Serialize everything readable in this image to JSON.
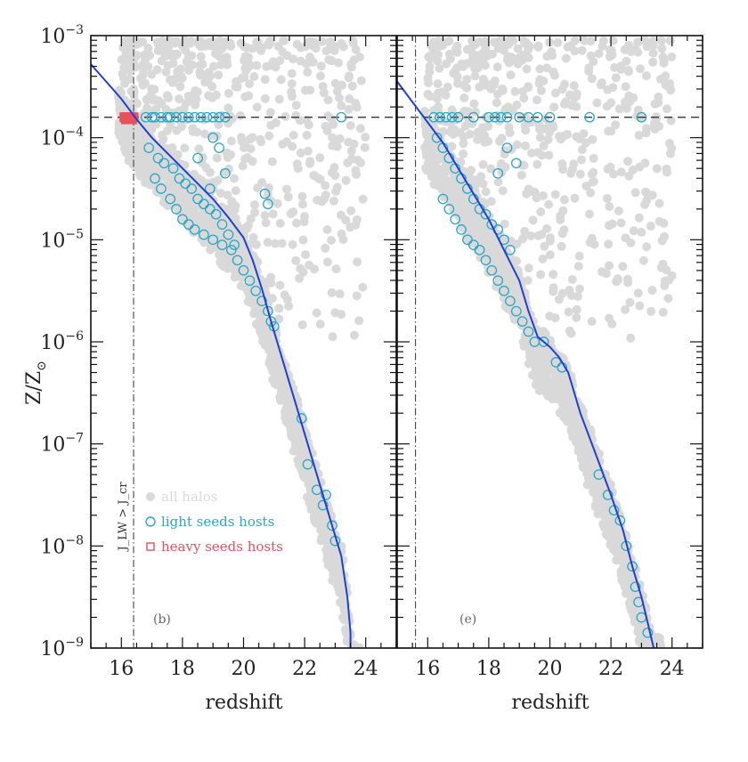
{
  "colors": {
    "halos": "#d9d9d9",
    "light_seeds": "#2aa6c6",
    "heavy_seeds": "#e8505b",
    "median_line": "#1f3fd6",
    "axes": "#111111"
  },
  "y_axis": {
    "label": "Z/Z",
    "label_subscript": "⊙",
    "ticks": [
      {
        "base": "10",
        "exp": "−3",
        "value": -3
      },
      {
        "base": "10",
        "exp": "−4",
        "value": -4
      },
      {
        "base": "10",
        "exp": "−5",
        "value": -5
      },
      {
        "base": "10",
        "exp": "−6",
        "value": -6
      },
      {
        "base": "10",
        "exp": "−7",
        "value": -7
      },
      {
        "base": "10",
        "exp": "−8",
        "value": -8
      },
      {
        "base": "10",
        "exp": "−9",
        "value": -9
      }
    ]
  },
  "legend": {
    "all_halos": "all halos",
    "light_seeds": "light seeds hosts",
    "heavy_seeds": "heavy seeds hosts"
  },
  "jlw_label": "J_LW > J_cr",
  "chart_data": [
    {
      "type": "scatter",
      "panel": "(b)",
      "xlabel": "redshift",
      "ylabel": "Z/Z⊙",
      "xlim": [
        15,
        25
      ],
      "ylim_log10": [
        -9,
        -3
      ],
      "x_ticks": [
        "16",
        "18",
        "20",
        "22",
        "24"
      ],
      "critical_metallicity_log10": -3.8,
      "jlw_redshift": 16.4,
      "median_line": {
        "x": [
          15.0,
          15.5,
          16.0,
          16.5,
          17.0,
          17.5,
          18.0,
          18.5,
          19.0,
          19.5,
          20.0,
          20.3,
          20.6,
          20.9,
          21.2,
          21.6,
          22.0,
          22.4,
          22.8,
          23.2,
          23.4,
          23.5,
          23.5
        ],
        "y": [
          -3.28,
          -3.45,
          -3.62,
          -3.82,
          -4.0,
          -4.15,
          -4.3,
          -4.45,
          -4.6,
          -4.78,
          -4.98,
          -5.2,
          -5.48,
          -5.8,
          -6.1,
          -6.5,
          -6.9,
          -7.3,
          -7.7,
          -8.1,
          -8.5,
          -8.85,
          -9.0
        ]
      },
      "light_seeds": {
        "x": [
          16.8,
          17.0,
          17.1,
          17.3,
          17.5,
          17.6,
          17.8,
          18.0,
          18.2,
          18.4,
          18.6,
          18.8,
          19.0,
          19.2,
          19.4,
          16.9,
          17.2,
          17.4,
          17.7,
          17.9,
          18.1,
          18.3,
          18.5,
          18.7,
          18.9,
          19.1,
          19.3,
          19.5,
          19.7,
          17.1,
          17.3,
          17.6,
          17.8,
          18.0,
          18.2,
          18.4,
          18.7,
          19.0,
          19.3,
          19.6,
          19.8,
          20.0,
          20.2,
          20.4,
          20.6,
          20.8,
          20.9,
          21.0,
          21.9,
          22.1,
          22.4,
          22.6,
          22.9,
          23.0,
          22.7,
          20.7,
          20.8,
          19.4,
          19.2,
          19.0,
          18.9,
          18.5,
          23.2
        ],
        "y": [
          -3.8,
          -3.8,
          -3.8,
          -3.8,
          -3.8,
          -3.8,
          -3.8,
          -3.8,
          -3.8,
          -3.8,
          -3.8,
          -3.8,
          -3.8,
          -3.8,
          -3.8,
          -4.1,
          -4.2,
          -4.25,
          -4.3,
          -4.4,
          -4.45,
          -4.5,
          -4.6,
          -4.65,
          -4.7,
          -4.75,
          -4.85,
          -4.95,
          -5.05,
          -4.4,
          -4.5,
          -4.6,
          -4.7,
          -4.8,
          -4.85,
          -4.9,
          -4.95,
          -5.0,
          -5.05,
          -5.1,
          -5.2,
          -5.3,
          -5.4,
          -5.5,
          -5.6,
          -5.7,
          -5.8,
          -5.85,
          -6.75,
          -7.2,
          -7.45,
          -7.6,
          -7.8,
          -7.95,
          -7.5,
          -4.55,
          -4.65,
          -4.35,
          -4.1,
          -4.0,
          -4.5,
          -4.2,
          -3.8
        ]
      },
      "heavy_seeds": {
        "x": [
          16.1,
          16.2,
          16.3,
          16.4,
          16.15,
          16.35
        ],
        "y": [
          -3.8,
          -3.8,
          -3.8,
          -3.8,
          -3.82,
          -3.82
        ]
      }
    },
    {
      "type": "scatter",
      "panel": "(e)",
      "xlabel": "redshift",
      "ylabel": "Z/Z⊙",
      "xlim": [
        15,
        25
      ],
      "ylim_log10": [
        -9,
        -3
      ],
      "x_ticks": [
        "16",
        "18",
        "20",
        "22",
        "24"
      ],
      "critical_metallicity_log10": -3.8,
      "jlw_redshift": 15.6,
      "median_line": {
        "x": [
          15.0,
          15.5,
          16.0,
          16.5,
          17.0,
          17.5,
          18.0,
          18.5,
          19.0,
          19.3,
          19.6,
          20.0,
          20.3,
          20.6,
          21.0,
          21.5,
          22.0,
          22.4,
          22.7,
          23.0,
          23.2,
          23.4
        ],
        "y": [
          -3.45,
          -3.65,
          -3.85,
          -4.05,
          -4.3,
          -4.55,
          -4.8,
          -5.1,
          -5.4,
          -5.7,
          -5.95,
          -6.05,
          -6.15,
          -6.3,
          -6.7,
          -7.1,
          -7.5,
          -7.85,
          -8.2,
          -8.5,
          -8.75,
          -9.0
        ]
      },
      "light_seeds": {
        "x": [
          16.2,
          16.4,
          16.6,
          16.8,
          17.0,
          17.5,
          18.0,
          18.2,
          18.4,
          18.6,
          19.0,
          19.3,
          19.6,
          20.0,
          21.3,
          23.0,
          16.3,
          16.5,
          16.7,
          16.9,
          17.1,
          17.3,
          17.5,
          17.7,
          17.9,
          18.1,
          18.3,
          18.5,
          18.7,
          16.5,
          16.7,
          16.9,
          17.1,
          17.3,
          17.5,
          17.7,
          17.9,
          18.1,
          18.3,
          18.5,
          18.7,
          18.9,
          19.1,
          19.3,
          19.5,
          19.8,
          20.2,
          20.4,
          21.6,
          21.9,
          22.1,
          22.3,
          22.5,
          22.7,
          22.8,
          22.9,
          23.0,
          23.2,
          18.9,
          18.6,
          18.3
        ],
        "y": [
          -3.8,
          -3.8,
          -3.8,
          -3.8,
          -3.8,
          -3.8,
          -3.8,
          -3.8,
          -3.8,
          -3.8,
          -3.8,
          -3.8,
          -3.8,
          -3.8,
          -3.8,
          -3.8,
          -4.0,
          -4.1,
          -4.2,
          -4.3,
          -4.4,
          -4.5,
          -4.6,
          -4.7,
          -4.75,
          -4.85,
          -4.9,
          -5.0,
          -5.1,
          -4.6,
          -4.7,
          -4.8,
          -4.9,
          -5.0,
          -5.05,
          -5.1,
          -5.2,
          -5.3,
          -5.4,
          -5.5,
          -5.6,
          -5.7,
          -5.8,
          -5.9,
          -6.0,
          -6.0,
          -6.2,
          -6.25,
          -7.3,
          -7.5,
          -7.65,
          -7.75,
          -8.0,
          -8.2,
          -8.4,
          -8.55,
          -8.7,
          -8.85,
          -4.25,
          -4.1,
          -4.35
        ]
      },
      "heavy_seeds": {
        "x": [],
        "y": []
      }
    }
  ]
}
